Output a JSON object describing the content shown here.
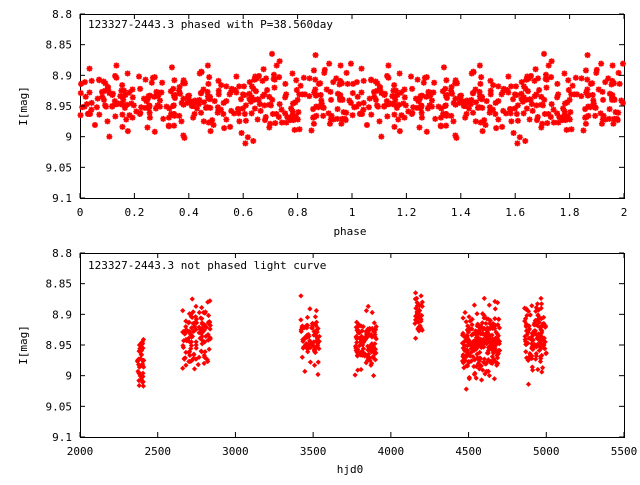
{
  "chart_data": [
    {
      "type": "scatter",
      "title": "123327-2443.3 phased with P=38.560day",
      "xlabel": "phase",
      "ylabel": "I[mag]",
      "xlim": [
        0,
        2
      ],
      "ylim": [
        9.1,
        8.8
      ],
      "y_inverted": true,
      "xticks": [
        "0",
        "0.2",
        "0.4",
        "0.6",
        "0.8",
        "1",
        "1.2",
        "1.4",
        "1.6",
        "1.8",
        "2"
      ],
      "yticks": [
        "8.8",
        "8.85",
        "8.9",
        "8.95",
        "9",
        "9.05",
        "9.1"
      ],
      "marker_color": "#ff0000",
      "series": [
        {
          "name": "",
          "x": [],
          "y": []
        }
      ]
    },
    {
      "type": "scatter",
      "title": "123327-2443.3 not phased light curve",
      "xlabel": "hjd0",
      "ylabel": "I[mag]",
      "xlim": [
        2000,
        5500
      ],
      "ylim": [
        9.1,
        8.8
      ],
      "y_inverted": true,
      "xticks": [
        "2000",
        "2500",
        "3000",
        "3500",
        "4000",
        "4500",
        "5000",
        "5500"
      ],
      "yticks": [
        "8.8",
        "8.85",
        "8.9",
        "8.95",
        "9",
        "9.05",
        "9.1"
      ],
      "marker_color": "#ff0000",
      "series": [
        {
          "name": "",
          "x": [],
          "y": []
        }
      ]
    }
  ]
}
